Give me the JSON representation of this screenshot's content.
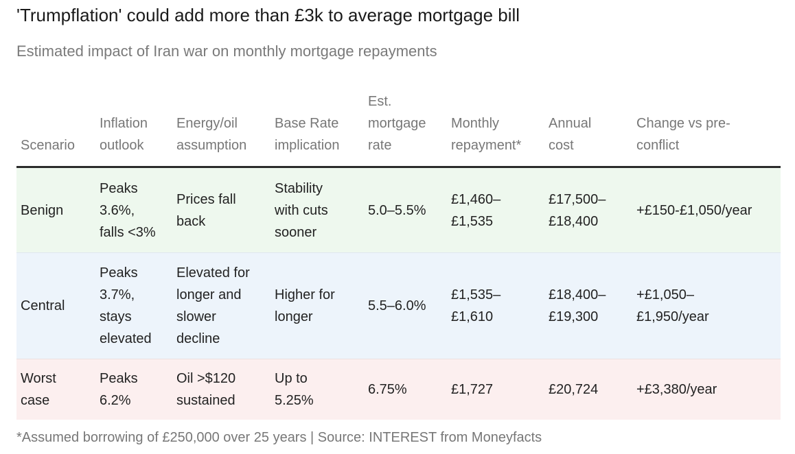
{
  "title": "'Trumpflation' could add more than £3k to average mortgage bill",
  "subtitle": "Estimated impact of Iran war on monthly mortgage repayments",
  "table": {
    "headers": [
      [
        "Scenario"
      ],
      [
        "Inflation",
        "outlook"
      ],
      [
        "Energy/oil",
        "assumption"
      ],
      [
        "Base Rate",
        "implication"
      ],
      [
        "Est.",
        "mortgage",
        "rate"
      ],
      [
        "Monthly",
        "repayment*"
      ],
      [
        "Annual",
        "cost"
      ],
      [
        "Change vs pre-",
        "conflict"
      ]
    ],
    "rows": [
      {
        "scenario": [
          "Benign"
        ],
        "inflation": [
          "Peaks",
          "3.6%,",
          "falls <3%"
        ],
        "energy": [
          "Prices fall",
          "back"
        ],
        "base_rate": [
          "Stability",
          "with cuts",
          "sooner"
        ],
        "mortgage_rate": [
          "5.0–5.5%"
        ],
        "monthly": [
          "£1,460–",
          "£1,535"
        ],
        "annual": [
          "£17,500–",
          "£18,400"
        ],
        "change": [
          "+£150-£1,050/year"
        ]
      },
      {
        "scenario": [
          "Central"
        ],
        "inflation": [
          "Peaks",
          "3.7%,",
          "stays",
          "elevated"
        ],
        "energy": [
          "Elevated for",
          "longer and",
          "slower",
          "decline"
        ],
        "base_rate": [
          "Higher for",
          "longer"
        ],
        "mortgage_rate": [
          "5.5–6.0%"
        ],
        "monthly": [
          "£1,535–",
          "£1,610"
        ],
        "annual": [
          "£18,400–",
          "£19,300"
        ],
        "change": [
          "+£1,050–",
          "£1,950/year"
        ]
      },
      {
        "scenario": [
          "Worst",
          "case"
        ],
        "inflation": [
          "Peaks",
          "6.2%"
        ],
        "energy": [
          "Oil >$120",
          "sustained"
        ],
        "base_rate": [
          "Up to",
          "5.25%"
        ],
        "mortgage_rate": [
          "6.75%"
        ],
        "monthly": [
          "£1,727"
        ],
        "annual": [
          "£20,724"
        ],
        "change": [
          "+£3,380/year"
        ]
      }
    ]
  },
  "footnote": "*Assumed borrowing of £250,000 over 25 years | Source: INTEREST from Moneyfacts",
  "colors": {
    "benign_row": "#eef8ee",
    "central_row": "#edf4fb",
    "worst_row": "#fcefef",
    "header_rule": "#2b2b2b"
  }
}
